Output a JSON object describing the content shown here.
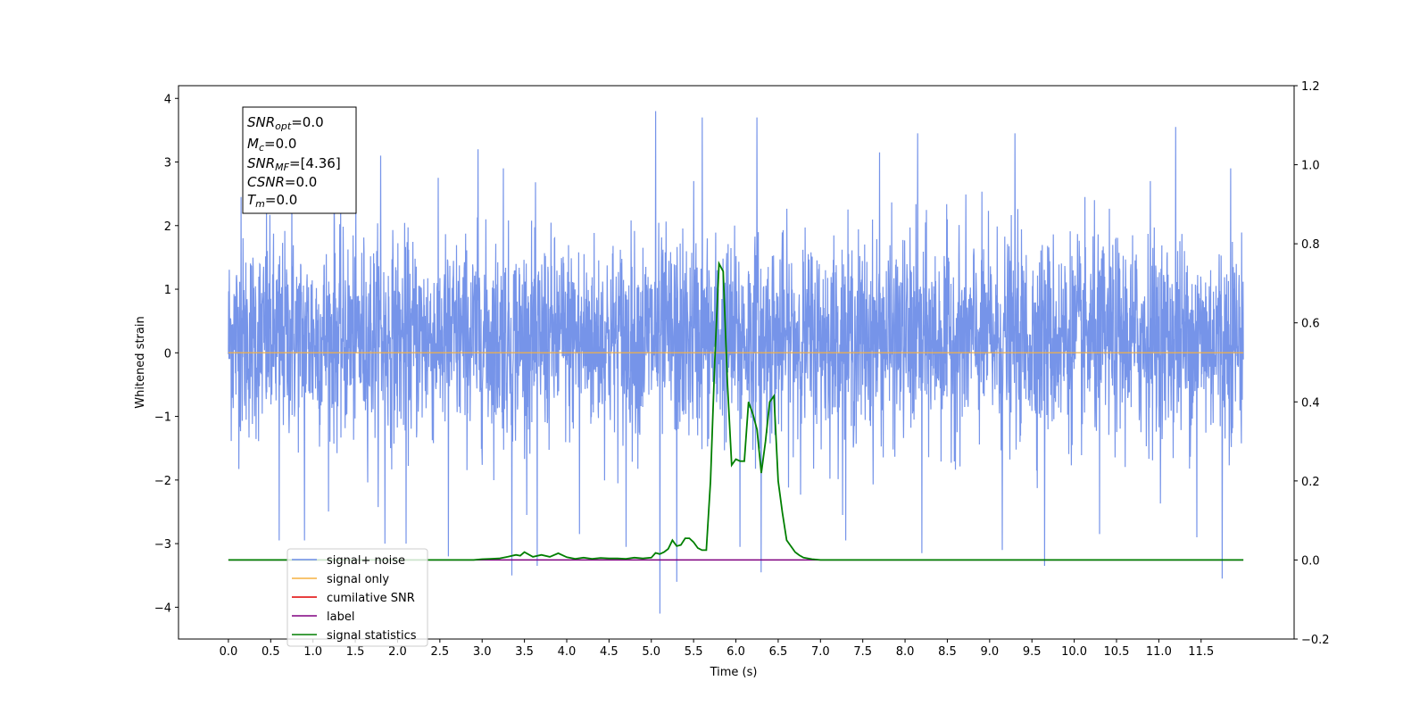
{
  "chart_data": {
    "type": "line",
    "xlabel": "Time (s)",
    "ylabel": "Whitened strain",
    "xlim": [
      -0.59,
      12.6
    ],
    "ylim": [
      -4.5,
      4.2
    ],
    "y2lim": [
      -0.2,
      1.2
    ],
    "x_ticks": [
      0.0,
      0.5,
      1.0,
      1.5,
      2.0,
      2.5,
      3.0,
      3.5,
      4.0,
      4.5,
      5.0,
      5.5,
      6.0,
      6.5,
      7.0,
      7.5,
      8.0,
      8.5,
      9.0,
      9.5,
      10.0,
      10.5,
      11.0,
      11.5
    ],
    "x_tick_labels": [
      "0.0",
      "0.5",
      "1.0",
      "1.5",
      "2.0",
      "2.5",
      "3.0",
      "3.5",
      "4.0",
      "4.5",
      "5.0",
      "5.5",
      "6.0",
      "6.5",
      "7.0",
      "7.5",
      "8.0",
      "8.5",
      "9.0",
      "9.5",
      "10.0",
      "10.5",
      "11.0",
      "11.5"
    ],
    "y_ticks": [
      -4,
      -3,
      -2,
      -1,
      0,
      1,
      2,
      3,
      4
    ],
    "y_tick_labels": [
      "−4",
      "−3",
      "−2",
      "−1",
      "0",
      "1",
      "2",
      "3",
      "4"
    ],
    "y2_ticks": [
      -0.2,
      0.0,
      0.2,
      0.4,
      0.6,
      0.8,
      1.0,
      1.2
    ],
    "y2_tick_labels": [
      "−0.2",
      "0.0",
      "0.2",
      "0.4",
      "0.6",
      "0.8",
      "1.0",
      "1.2"
    ],
    "grid": false,
    "legend_position": "lower-left",
    "x_range": [
      0.0,
      12.0
    ],
    "series": [
      {
        "name": "signal+ noise",
        "axis": "left",
        "color": "#6f8ee8",
        "kind": "noise",
        "envelope_typical": [
          -1.9,
          2.4
        ],
        "spike_points": [
          [
            0.15,
            2.45
          ],
          [
            0.45,
            2.4
          ],
          [
            0.75,
            2.75
          ],
          [
            1.25,
            2.8
          ],
          [
            1.8,
            3.1
          ],
          [
            2.95,
            3.2
          ],
          [
            3.25,
            2.9
          ],
          [
            5.05,
            3.8
          ],
          [
            5.1,
            -4.1
          ],
          [
            5.3,
            -3.6
          ],
          [
            5.5,
            2.7
          ],
          [
            5.6,
            3.7
          ],
          [
            6.25,
            3.7
          ],
          [
            6.3,
            -3.45
          ],
          [
            7.7,
            3.15
          ],
          [
            8.15,
            3.45
          ],
          [
            9.3,
            3.45
          ],
          [
            9.65,
            -3.35
          ],
          [
            10.9,
            2.7
          ],
          [
            11.2,
            3.55
          ],
          [
            11.75,
            -3.55
          ],
          [
            11.85,
            2.9
          ],
          [
            0.6,
            -2.95
          ],
          [
            0.9,
            -2.95
          ],
          [
            1.85,
            -3.0
          ],
          [
            2.1,
            -3.0
          ],
          [
            2.6,
            -3.2
          ],
          [
            3.35,
            -3.5
          ],
          [
            3.65,
            -3.35
          ],
          [
            4.15,
            -2.85
          ],
          [
            4.7,
            -3.05
          ],
          [
            6.05,
            -3.05
          ],
          [
            7.3,
            -2.95
          ],
          [
            8.2,
            -3.15
          ],
          [
            9.15,
            -3.1
          ],
          [
            10.3,
            -2.85
          ],
          [
            11.45,
            -2.9
          ]
        ]
      },
      {
        "name": "signal only",
        "axis": "left",
        "color": "#f5b041",
        "x": [
          0.0,
          12.0
        ],
        "y": [
          0.0,
          0.0
        ]
      },
      {
        "name": "cumilative SNR",
        "axis": "right",
        "color": "#e00000",
        "x": [],
        "y": []
      },
      {
        "name": "label",
        "axis": "right",
        "color": "#800080",
        "x": [
          0.0,
          12.0
        ],
        "y": [
          0.0,
          0.0
        ]
      },
      {
        "name": "signal statistics",
        "axis": "right",
        "color": "#007f00",
        "x": [
          0.0,
          2.9,
          3.0,
          3.1,
          3.2,
          3.3,
          3.4,
          3.45,
          3.5,
          3.6,
          3.7,
          3.8,
          3.9,
          4.0,
          4.1,
          4.2,
          4.3,
          4.4,
          4.5,
          4.6,
          4.7,
          4.8,
          4.9,
          5.0,
          5.05,
          5.1,
          5.15,
          5.2,
          5.25,
          5.3,
          5.35,
          5.4,
          5.45,
          5.5,
          5.55,
          5.6,
          5.65,
          5.7,
          5.75,
          5.8,
          5.85,
          5.9,
          5.95,
          6.0,
          6.05,
          6.1,
          6.15,
          6.2,
          6.25,
          6.3,
          6.35,
          6.4,
          6.45,
          6.5,
          6.55,
          6.6,
          6.65,
          6.7,
          6.75,
          6.8,
          6.9,
          7.0,
          7.5,
          8.0,
          12.0
        ],
        "y": [
          0.0,
          0.0,
          0.002,
          0.003,
          0.004,
          0.008,
          0.013,
          0.011,
          0.02,
          0.008,
          0.013,
          0.008,
          0.017,
          0.007,
          0.003,
          0.006,
          0.003,
          0.005,
          0.004,
          0.004,
          0.003,
          0.006,
          0.004,
          0.006,
          0.018,
          0.015,
          0.02,
          0.028,
          0.05,
          0.035,
          0.038,
          0.055,
          0.055,
          0.045,
          0.03,
          0.025,
          0.025,
          0.2,
          0.5,
          0.75,
          0.73,
          0.45,
          0.24,
          0.255,
          0.25,
          0.25,
          0.4,
          0.37,
          0.33,
          0.22,
          0.3,
          0.4,
          0.415,
          0.2,
          0.12,
          0.05,
          0.035,
          0.02,
          0.012,
          0.006,
          0.002,
          0.0,
          0.0,
          0.0,
          0.0
        ]
      }
    ],
    "annotation_lines": [
      "SNR_opt=0.0",
      "M_c=0.0",
      "SNR_MF=[4.36]",
      "CSNR=0.0",
      "T_m=0.0"
    ],
    "annotation": {
      "snr_opt": {
        "sym": "SNR",
        "sub": "opt",
        "val": "=0.0"
      },
      "mc": {
        "sym": "M",
        "sub": "c",
        "val": "=0.0"
      },
      "snr_mf": {
        "sym": "SNR",
        "sub": "MF",
        "val": "=[4.36]"
      },
      "csnr": {
        "sym": "CSNR",
        "sub": "",
        "val": "=0.0"
      },
      "tm": {
        "sym": "T",
        "sub": "m",
        "val": "=0.0"
      }
    }
  }
}
